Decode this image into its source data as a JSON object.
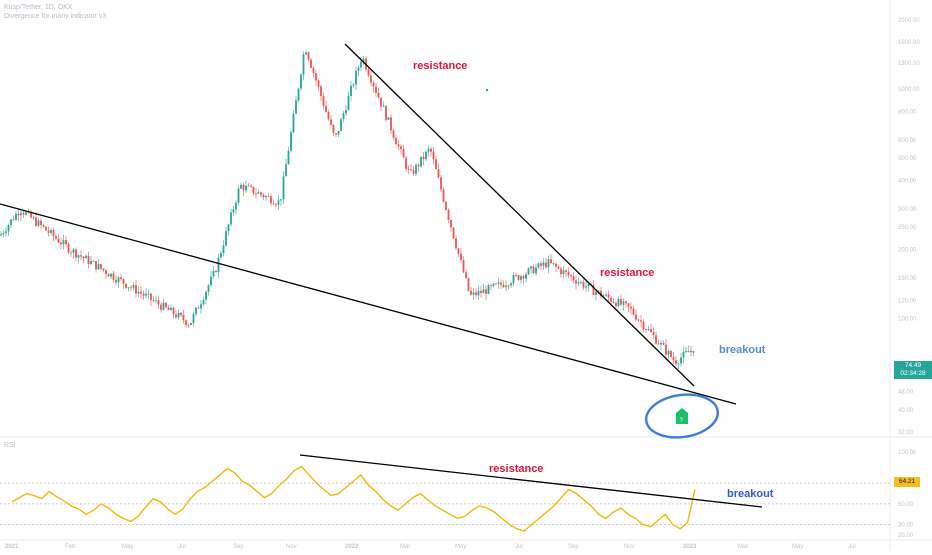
{
  "header": {
    "symbol_line": "Kusp/Tether, 1D, OKX",
    "indicator_line": "Divergence for many indicator v3",
    "rsi_label": "RSI"
  },
  "price_tag": {
    "price": "74.49",
    "countdown": "02:34:28",
    "color": "#26a69a"
  },
  "rsi_tag": {
    "value": "64.21",
    "color": "#f5bd21"
  },
  "colors": {
    "up": "#26a69a",
    "down": "#ef5350",
    "rsi_line": "#f0b90b",
    "trendline": "#000000",
    "circle": "#3b7dd8"
  },
  "annotations": [
    {
      "text": "resistance",
      "style": "red"
    },
    {
      "text": "resistance",
      "style": "red"
    },
    {
      "text": "breakout",
      "style": "blue"
    },
    {
      "text": "resistance",
      "style": "red"
    },
    {
      "text": "breakout",
      "style": "blue-dark"
    }
  ],
  "chart_data": [
    {
      "type": "candlestick",
      "title": "Kusp/Tether, 1D, OKX",
      "x_ticks": [
        "2021",
        "Feb",
        "May",
        "Jul",
        "Sep",
        "Nov",
        "2022",
        "Mar",
        "May",
        "Jul",
        "Sep",
        "Nov",
        "2023",
        "Mar",
        "May",
        "Jul"
      ],
      "y_ticks": [
        "2000.00",
        "1600.00",
        "1300.00",
        "1000.00",
        "800.00",
        "600.00",
        "500.00",
        "400.00",
        "300.00",
        "250.00",
        "200.00",
        "150.00",
        "120.00",
        "100.00",
        "74.49",
        "60.00",
        "48.00",
        "40.00",
        "32.00"
      ],
      "scale": "log",
      "last_price": 74.49,
      "trend": [
        {
          "label": "start 2021",
          "price": 230
        },
        {
          "label": "Jan 2021",
          "price": 300
        },
        {
          "label": "Apr 2021",
          "price": 200
        },
        {
          "label": "Jun 2021",
          "price": 95
        },
        {
          "label": "Aug 2021",
          "price": 160
        },
        {
          "label": "Sep 2021",
          "price": 380
        },
        {
          "label": "Oct 2021",
          "price": 320
        },
        {
          "label": "Nov 2021 high",
          "price": 1550
        },
        {
          "label": "Dec 2021",
          "price": 600
        },
        {
          "label": "Jan 2022 high",
          "price": 1400
        },
        {
          "label": "Mar 2022",
          "price": 420
        },
        {
          "label": "Apr 2022",
          "price": 550
        },
        {
          "label": "May 2022",
          "price": 125
        },
        {
          "label": "Jun 2022",
          "price": 140
        },
        {
          "label": "Jul 2022",
          "price": 175
        },
        {
          "label": "Sep 2022",
          "price": 135
        },
        {
          "label": "Nov 2022",
          "price": 110
        },
        {
          "label": "Dec 2022",
          "price": 65
        },
        {
          "label": "Jan 2023",
          "price": 74.49
        }
      ]
    },
    {
      "type": "line",
      "title": "RSI",
      "y_ticks": [
        "100.00",
        "70.00",
        "50.00",
        "30.00",
        "20.00"
      ],
      "ylim": [
        20,
        100
      ],
      "last_value": 64.21,
      "series": [
        {
          "values": [
            52,
            56,
            60,
            58,
            55,
            62,
            57,
            53,
            48,
            45,
            40,
            44,
            50,
            46,
            40,
            36,
            33,
            38,
            47,
            55,
            52,
            45,
            40,
            45,
            55,
            62,
            66,
            72,
            78,
            84,
            80,
            72,
            68,
            62,
            56,
            60,
            68,
            74,
            82,
            86,
            78,
            70,
            64,
            58,
            60,
            66,
            72,
            78,
            68,
            62,
            54,
            48,
            44,
            50,
            56,
            60,
            54,
            48,
            44,
            40,
            36,
            38,
            44,
            48,
            46,
            42,
            36,
            30,
            26,
            24,
            30,
            36,
            42,
            48,
            56,
            64,
            60,
            54,
            48,
            40,
            36,
            42,
            46,
            40,
            36,
            30,
            28,
            34,
            40,
            30,
            26,
            32,
            64
          ]
        }
      ]
    }
  ]
}
